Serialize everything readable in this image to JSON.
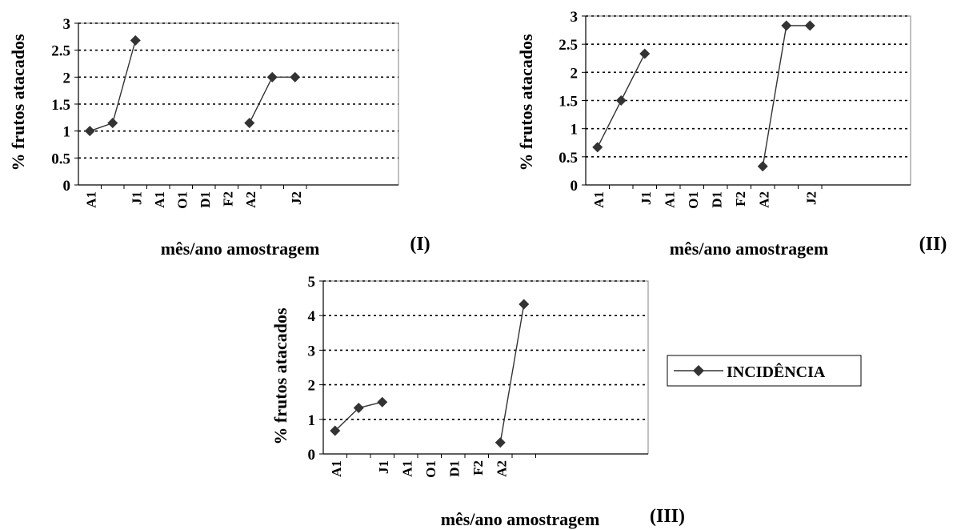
{
  "chart_data": [
    {
      "id": "I",
      "type": "line",
      "panel_label": "(I)",
      "xlabel": "mês/ano amostragem",
      "ylabel": "% frutos atacados",
      "ylim": [
        0,
        3
      ],
      "y_ticks": [
        "0",
        "0.5",
        "1",
        "1.5",
        "2",
        "2.5",
        "3"
      ],
      "y_tick_values": [
        0,
        0.5,
        1,
        1.5,
        2,
        2.5,
        3
      ],
      "grid": true,
      "x_labels": [
        "A1",
        "",
        "J1",
        "A1",
        "O1",
        "D1",
        "F2",
        "A2",
        "",
        "J2"
      ],
      "series": [
        {
          "name": "INCIDÊNCIA",
          "values": [
            1.0,
            1.15,
            2.68,
            null,
            null,
            null,
            null,
            1.15,
            2.0,
            2.0
          ]
        }
      ]
    },
    {
      "id": "II",
      "type": "line",
      "panel_label": "(II)",
      "xlabel": "mês/ano amostragem",
      "ylabel": "% frutos atacados",
      "ylim": [
        0,
        3
      ],
      "y_ticks": [
        "0",
        "0.5",
        "1",
        "1.5",
        "2",
        "2.5",
        "3"
      ],
      "y_tick_values": [
        0,
        0.5,
        1,
        1.5,
        2,
        2.5,
        3
      ],
      "grid": true,
      "x_labels": [
        "A1",
        "",
        "J1",
        "A1",
        "O1",
        "D1",
        "F2",
        "A2",
        "",
        "J2"
      ],
      "series": [
        {
          "name": "INCIDÊNCIA",
          "values": [
            0.67,
            1.5,
            2.33,
            null,
            null,
            null,
            null,
            0.33,
            2.83,
            2.83
          ]
        }
      ]
    },
    {
      "id": "III",
      "type": "line",
      "panel_label": "(III)",
      "xlabel": "mês/ano amostragem",
      "ylabel": "% frutos atacados",
      "ylim": [
        0,
        5
      ],
      "y_ticks": [
        "0",
        "1",
        "2",
        "3",
        "4",
        "5"
      ],
      "y_tick_values": [
        0,
        1,
        2,
        3,
        4,
        5
      ],
      "grid": true,
      "x_labels": [
        "A1",
        "",
        "J1",
        "A1",
        "O1",
        "D1",
        "F2",
        "A2",
        ""
      ],
      "series": [
        {
          "name": "INCIDÊNCIA",
          "values": [
            0.67,
            1.33,
            1.5,
            null,
            null,
            null,
            null,
            0.33,
            4.33
          ]
        }
      ]
    }
  ],
  "legend": {
    "label": "INCIDÊNCIA",
    "placement": "right"
  },
  "colors": {
    "line": "#333333",
    "marker": "#333333",
    "grid": "#000000",
    "axis": "#000000",
    "frame": "#808080"
  }
}
